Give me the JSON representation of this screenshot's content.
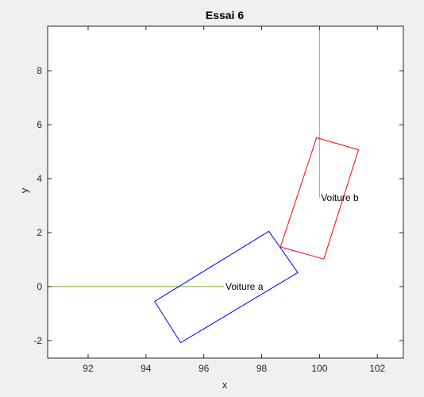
{
  "chart_data": {
    "type": "line",
    "title": "Essai 6",
    "xlabel": "x",
    "ylabel": "y",
    "xlim": [
      90.6,
      102.9
    ],
    "ylim": [
      -2.65,
      9.65
    ],
    "xticks": [
      92,
      94,
      96,
      98,
      100,
      102
    ],
    "yticks": [
      -2,
      0,
      2,
      4,
      6,
      8
    ],
    "grid": false,
    "background": "#ffffff",
    "figure_background": "#f0f0f0",
    "series": [
      {
        "kind": "path",
        "color": "#77ac30",
        "points": [
          [
            90.6,
            0.0
          ],
          [
            96.7,
            0.0
          ]
        ]
      },
      {
        "kind": "path",
        "color": "#4dbeee",
        "points": [
          [
            100.0,
            3.3
          ],
          [
            100.0,
            9.65
          ]
        ]
      },
      {
        "kind": "polygon",
        "color": "#0000ff",
        "points": [
          [
            94.3,
            -0.55
          ],
          [
            98.25,
            2.05
          ],
          [
            99.25,
            0.52
          ],
          [
            95.2,
            -2.08
          ]
        ]
      },
      {
        "kind": "polygon",
        "color": "#ff0000",
        "points": [
          [
            98.65,
            1.47
          ],
          [
            99.9,
            5.52
          ],
          [
            101.35,
            5.07
          ],
          [
            100.15,
            1.02
          ]
        ]
      }
    ],
    "annotations": [
      {
        "text": "Voiture a",
        "x": 96.75,
        "y": 0.0
      },
      {
        "text": "Voiture b",
        "x": 100.05,
        "y": 3.3
      }
    ]
  }
}
